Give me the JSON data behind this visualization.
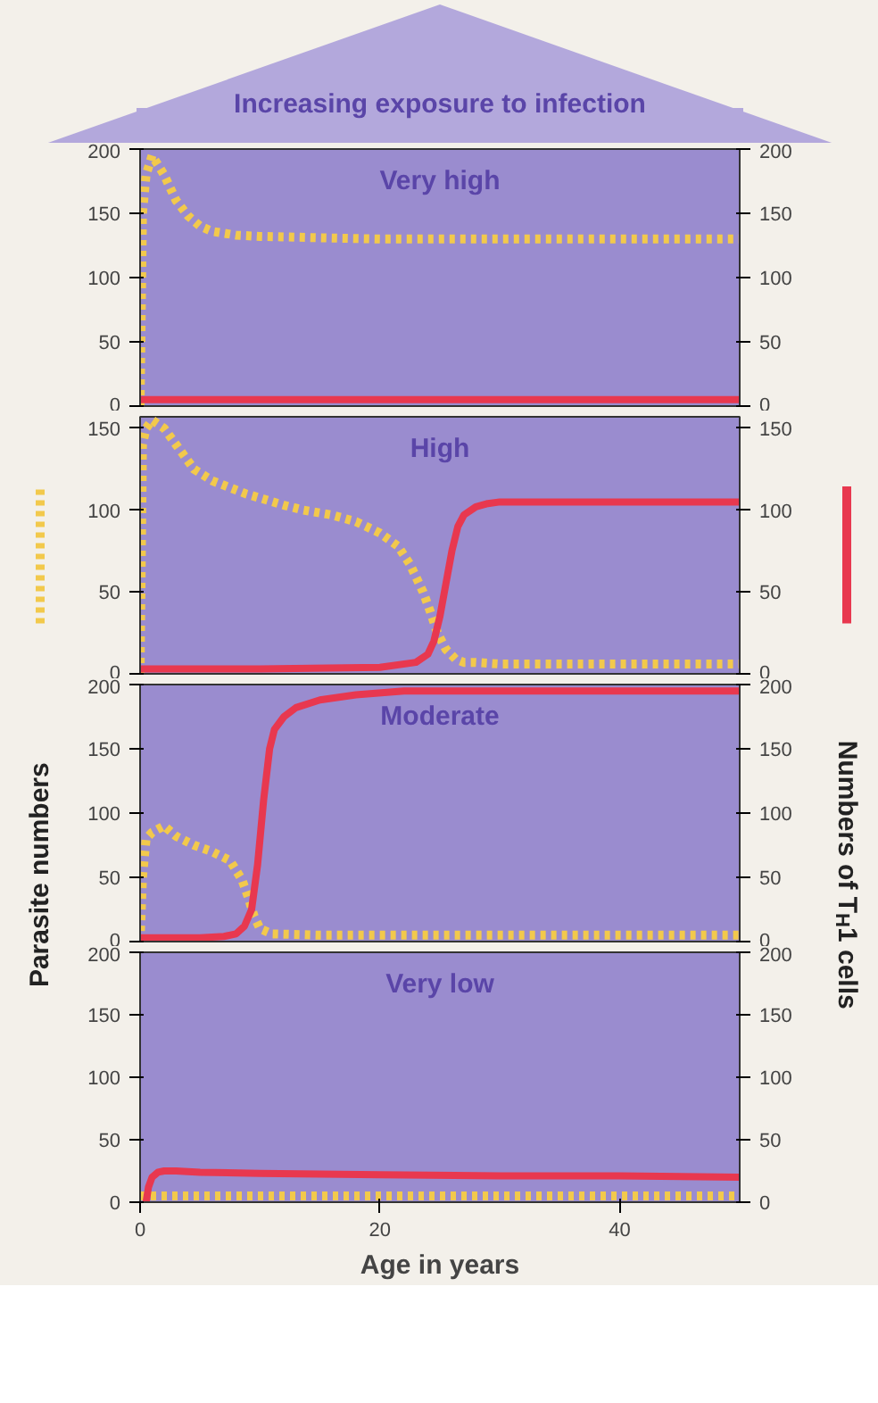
{
  "chart_data": [
    {
      "type": "line",
      "title": "Very high",
      "annotations": [
        "Increasing exposure to infection"
      ],
      "xlim": [
        0,
        50
      ],
      "ylim": [
        0,
        200
      ],
      "yticks": [
        0,
        50,
        100,
        150,
        200
      ],
      "y2lim": [
        0,
        200
      ],
      "y2ticks": [
        0,
        50,
        100,
        150,
        200
      ],
      "tick_labels": "y",
      "series": [
        {
          "color": "#f2c94c",
          "line_style": "dotted",
          "x": [
            0,
            0.2,
            0.5,
            1,
            2,
            3,
            4,
            5,
            6,
            8,
            10,
            15,
            20,
            30,
            40,
            50
          ],
          "values": [
            0,
            150,
            180,
            195,
            180,
            160,
            148,
            140,
            136,
            133,
            132,
            131,
            130,
            130,
            130,
            130
          ]
        },
        {
          "color": "#e8384f",
          "line_style": "solid",
          "x": [
            0,
            50
          ],
          "values": [
            5,
            5
          ]
        }
      ]
    },
    {
      "type": "line",
      "title": "High",
      "ylabel": "Parasite numbers",
      "y2label": "Numbers of T$_{H}$1 cells",
      "xlim": [
        0,
        50
      ],
      "ylim": [
        0,
        157
      ],
      "yticks": [
        0,
        50,
        100,
        150
      ],
      "y2lim": [
        0,
        157
      ],
      "y2ticks": [
        0,
        50,
        100,
        150
      ],
      "tick_labels": "y",
      "series": [
        {
          "color": "#f2c94c",
          "line_style": "dotted",
          "x": [
            0,
            0.2,
            0.5,
            1,
            2,
            3,
            4.5,
            6,
            8.8,
            12,
            13.6,
            16,
            18,
            20,
            21.5,
            22.5,
            23.6,
            24.2,
            24.8,
            25.5,
            26.3,
            27,
            28,
            30,
            40,
            50
          ],
          "values": [
            0,
            140,
            150,
            155,
            150,
            140,
            125,
            118,
            110,
            103,
            100,
            97,
            93,
            86,
            78,
            67,
            50,
            38,
            25,
            15,
            9,
            7,
            7,
            6,
            6,
            6
          ]
        },
        {
          "color": "#e8384f",
          "line_style": "solid",
          "x": [
            0,
            10,
            20,
            23,
            24,
            24.5,
            25,
            25.5,
            26,
            26.5,
            27,
            28,
            29,
            30,
            40,
            50
          ],
          "values": [
            3,
            3,
            4,
            7,
            12,
            20,
            35,
            55,
            75,
            90,
            97,
            102,
            104,
            105,
            105,
            105
          ]
        }
      ]
    },
    {
      "type": "line",
      "title": "Moderate",
      "xlim": [
        0,
        50
      ],
      "ylim": [
        0,
        200
      ],
      "yticks": [
        0,
        50,
        100,
        150,
        200
      ],
      "y2lim": [
        0,
        200
      ],
      "y2ticks": [
        0,
        50,
        100,
        150,
        200
      ],
      "tick_labels": "y",
      "series": [
        {
          "color": "#f2c94c",
          "line_style": "dotted",
          "x": [
            0,
            0.2,
            0.5,
            1,
            2,
            3,
            4.5,
            6,
            7.5,
            8.5,
            9,
            9.5,
            10,
            11,
            15,
            20,
            30,
            40,
            50
          ],
          "values": [
            0,
            50,
            80,
            85,
            90,
            82,
            75,
            70,
            63,
            48,
            35,
            20,
            10,
            6,
            5,
            5,
            5,
            5,
            5
          ]
        },
        {
          "color": "#e8384f",
          "line_style": "solid",
          "x": [
            0,
            5,
            7,
            8,
            8.7,
            9.3,
            9.8,
            10.3,
            10.8,
            11.2,
            12,
            13,
            15,
            18,
            22,
            30,
            40,
            50
          ],
          "values": [
            3,
            3,
            4,
            6,
            12,
            25,
            60,
            110,
            150,
            165,
            175,
            182,
            188,
            192,
            195,
            195,
            195,
            195
          ]
        }
      ]
    },
    {
      "type": "line",
      "title": "Very low",
      "xlabel": "Age in years",
      "xlim": [
        0,
        50
      ],
      "xticks": [
        0,
        20,
        40
      ],
      "ylim": [
        0,
        200
      ],
      "yticks": [
        0,
        50,
        100,
        150,
        200
      ],
      "y2lim": [
        0,
        200
      ],
      "y2ticks": [
        0,
        50,
        100,
        150,
        200
      ],
      "series": [
        {
          "color": "#f2c94c",
          "line_style": "dotted",
          "x": [
            0,
            50
          ],
          "values": [
            5,
            5
          ]
        },
        {
          "color": "#e8384f",
          "line_style": "solid",
          "x": [
            0.5,
            0.7,
            1,
            1.5,
            2,
            3,
            5,
            10,
            20,
            30,
            40,
            50
          ],
          "values": [
            0,
            12,
            20,
            24,
            25,
            25,
            24,
            23,
            22,
            21,
            21,
            20
          ]
        }
      ]
    }
  ]
}
